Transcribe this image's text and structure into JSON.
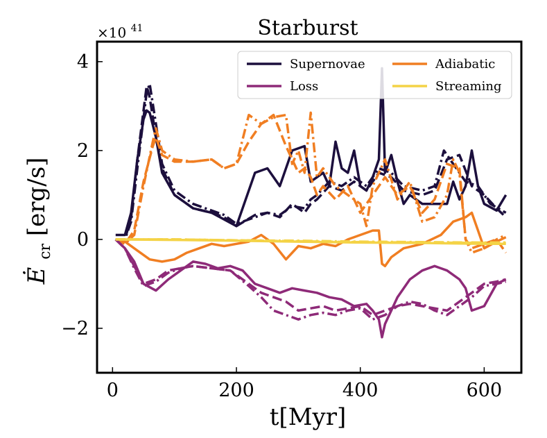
{
  "chart_data": {
    "type": "line",
    "title": "Starburst",
    "xlabel": "t[Myr]",
    "ylabel": "Ė_cr [erg/s]",
    "ylabel_main": "Ė",
    "ylabel_sub": "cr",
    "ylabel_units": "[erg/s]",
    "offset_text": "×10^41",
    "offset_base": "×10",
    "offset_exp": "41",
    "xlim": [
      -25,
      660
    ],
    "ylim": [
      -3.0,
      4.45
    ],
    "xticks": [
      0,
      200,
      400,
      600
    ],
    "xtick_labels": [
      "0",
      "200",
      "400",
      "600"
    ],
    "yticks": [
      -2,
      0,
      2,
      4
    ],
    "ytick_labels": [
      "−2",
      "0",
      "2",
      "4"
    ],
    "legend": {
      "position": "top-right",
      "entries": [
        {
          "label": "Supernovae",
          "color": "#1c0f3d"
        },
        {
          "label": "Adiabatic",
          "color": "#f07e22"
        },
        {
          "label": "Loss",
          "color": "#8e2a78"
        },
        {
          "label": "Streaming",
          "color": "#f4d347"
        }
      ]
    },
    "series": [
      {
        "name": "Supernovae (solid)",
        "color": "#1c0f3d",
        "dash": "solid",
        "x": [
          5,
          20,
          30,
          40,
          50,
          55,
          60,
          70,
          80,
          100,
          130,
          160,
          180,
          200,
          230,
          250,
          270,
          290,
          310,
          320,
          330,
          340,
          350,
          360,
          370,
          380,
          390,
          400,
          410,
          420,
          430,
          435,
          440,
          450,
          460,
          470,
          480,
          500,
          520,
          540,
          550,
          560,
          570,
          580,
          590,
          600,
          620,
          635
        ],
        "y": [
          0.1,
          0.1,
          0.6,
          1.8,
          2.7,
          2.9,
          2.85,
          2.3,
          1.5,
          1.0,
          0.7,
          0.6,
          0.45,
          0.3,
          1.5,
          1.6,
          1.2,
          2.0,
          2.1,
          1.3,
          1.4,
          1.5,
          1.2,
          2.2,
          1.6,
          1.5,
          2.0,
          1.2,
          1.1,
          1.4,
          1.8,
          3.85,
          1.5,
          1.9,
          1.3,
          0.8,
          1.0,
          0.8,
          0.8,
          0.8,
          1.3,
          0.9,
          1.2,
          2.0,
          1.2,
          0.8,
          0.65,
          1.0
        ]
      },
      {
        "name": "Supernovae (dashed)",
        "color": "#1c0f3d",
        "dash": "dashed",
        "x": [
          5,
          20,
          30,
          40,
          55,
          60,
          70,
          80,
          100,
          130,
          160,
          180,
          200,
          230,
          250,
          270,
          290,
          310,
          320,
          330,
          350,
          370,
          390,
          410,
          430,
          450,
          470,
          500,
          520,
          540,
          560,
          580,
          600,
          620,
          635
        ],
        "y": [
          0.0,
          0.0,
          0.5,
          1.8,
          3.45,
          3.2,
          2.3,
          1.6,
          1.0,
          0.7,
          0.6,
          0.5,
          0.3,
          0.55,
          0.6,
          0.5,
          0.8,
          0.6,
          0.8,
          0.9,
          1.2,
          1.1,
          1.3,
          1.1,
          1.5,
          1.4,
          1.1,
          1.0,
          1.1,
          1.8,
          1.9,
          1.2,
          1.0,
          0.7,
          0.5
        ]
      },
      {
        "name": "Supernovae (dash-dot)",
        "color": "#1c0f3d",
        "dash": "dashdot",
        "x": [
          5,
          20,
          30,
          40,
          55,
          60,
          70,
          80,
          100,
          130,
          160,
          180,
          200,
          230,
          250,
          270,
          290,
          310,
          320,
          330,
          350,
          370,
          390,
          410,
          430,
          450,
          470,
          500,
          520,
          535,
          550,
          570,
          590,
          610,
          635
        ],
        "y": [
          0.0,
          0.0,
          0.4,
          1.6,
          3.3,
          3.5,
          2.6,
          1.7,
          1.1,
          0.8,
          0.65,
          0.55,
          0.35,
          0.5,
          0.6,
          0.55,
          0.75,
          0.7,
          0.9,
          1.0,
          1.3,
          1.2,
          1.4,
          1.2,
          1.6,
          1.5,
          1.2,
          1.1,
          1.2,
          2.0,
          1.7,
          1.3,
          1.2,
          0.8,
          0.6
        ]
      },
      {
        "name": "Adiabatic (solid)",
        "color": "#f07e22",
        "dash": "solid",
        "x": [
          5,
          20,
          40,
          60,
          80,
          100,
          120,
          140,
          160,
          180,
          200,
          220,
          240,
          260,
          280,
          300,
          320,
          340,
          360,
          380,
          400,
          420,
          430,
          435,
          440,
          450,
          470,
          500,
          530,
          550,
          570,
          580,
          590,
          600,
          620,
          635
        ],
        "y": [
          0.0,
          -0.05,
          -0.25,
          -0.45,
          -0.5,
          -0.45,
          -0.3,
          -0.2,
          -0.1,
          -0.15,
          -0.1,
          -0.05,
          0.1,
          -0.1,
          -0.45,
          -0.15,
          -0.2,
          -0.1,
          -0.15,
          0.0,
          0.1,
          0.2,
          0.2,
          -0.55,
          -0.6,
          -0.4,
          -0.2,
          -0.1,
          0.1,
          0.4,
          0.5,
          0.6,
          0.2,
          -0.2,
          -0.05,
          0.05
        ]
      },
      {
        "name": "Adiabatic (dashed)",
        "color": "#f07e22",
        "dash": "dashed",
        "x": [
          5,
          20,
          35,
          50,
          65,
          70,
          80,
          100,
          130,
          160,
          180,
          200,
          220,
          240,
          260,
          280,
          300,
          310,
          320,
          330,
          340,
          360,
          380,
          400,
          420,
          440,
          460,
          480,
          500,
          520,
          540,
          560,
          570,
          580,
          600,
          620,
          635
        ],
        "y": [
          0.0,
          -0.1,
          0.2,
          1.3,
          2.1,
          2.3,
          1.9,
          1.75,
          1.75,
          1.8,
          1.6,
          1.7,
          2.2,
          2.6,
          2.8,
          2.1,
          1.5,
          1.6,
          1.4,
          1.0,
          1.2,
          0.9,
          1.2,
          0.6,
          1.0,
          1.4,
          1.0,
          1.2,
          0.6,
          0.9,
          1.7,
          1.6,
          0.0,
          -0.2,
          -0.1,
          0.0,
          -0.3
        ]
      },
      {
        "name": "Adiabatic (dash-dot)",
        "color": "#f07e22",
        "dash": "dashdot",
        "x": [
          5,
          20,
          35,
          50,
          65,
          70,
          80,
          100,
          130,
          160,
          180,
          200,
          220,
          230,
          240,
          260,
          280,
          290,
          300,
          310,
          320,
          330,
          340,
          360,
          380,
          400,
          410,
          420,
          440,
          460,
          480,
          500,
          520,
          540,
          550,
          560,
          570,
          580,
          600,
          620,
          635
        ],
        "y": [
          0.0,
          -0.1,
          0.1,
          1.2,
          2.2,
          2.5,
          2.0,
          1.8,
          1.75,
          1.8,
          1.6,
          1.7,
          2.8,
          2.7,
          2.6,
          2.75,
          2.8,
          1.7,
          2.0,
          1.5,
          2.85,
          1.4,
          1.6,
          1.2,
          1.0,
          0.8,
          0.3,
          1.2,
          1.8,
          0.9,
          1.3,
          0.4,
          0.5,
          1.0,
          1.8,
          1.5,
          0.0,
          -0.3,
          -0.2,
          0.0,
          0.1
        ]
      },
      {
        "name": "Loss (solid)",
        "color": "#8e2a78",
        "dash": "solid",
        "x": [
          5,
          20,
          35,
          50,
          70,
          90,
          110,
          130,
          150,
          170,
          190,
          210,
          230,
          250,
          270,
          290,
          310,
          330,
          350,
          370,
          390,
          410,
          420,
          430,
          435,
          440,
          460,
          480,
          500,
          520,
          540,
          560,
          570,
          580,
          600,
          620,
          635
        ],
        "y": [
          0.0,
          -0.2,
          -0.5,
          -1.0,
          -1.15,
          -0.9,
          -0.7,
          -0.5,
          -0.55,
          -0.65,
          -0.6,
          -0.7,
          -1.0,
          -1.1,
          -1.2,
          -1.1,
          -1.15,
          -1.2,
          -1.3,
          -1.35,
          -1.5,
          -1.45,
          -1.6,
          -1.8,
          -2.2,
          -1.9,
          -1.3,
          -0.9,
          -0.7,
          -0.6,
          -0.7,
          -0.9,
          -1.1,
          -1.6,
          -1.5,
          -1.0,
          -0.9
        ]
      },
      {
        "name": "Loss (dashed)",
        "color": "#8e2a78",
        "dash": "dashed",
        "x": [
          5,
          20,
          35,
          50,
          70,
          90,
          110,
          130,
          160,
          190,
          220,
          240,
          260,
          280,
          300,
          320,
          340,
          360,
          380,
          400,
          420,
          440,
          460,
          480,
          500,
          520,
          540,
          560,
          580,
          600,
          620,
          635
        ],
        "y": [
          0.0,
          -0.2,
          -0.6,
          -1.0,
          -0.9,
          -0.7,
          -0.65,
          -0.6,
          -0.65,
          -0.7,
          -1.0,
          -1.2,
          -1.3,
          -1.4,
          -1.6,
          -1.55,
          -1.5,
          -1.6,
          -1.55,
          -1.5,
          -1.7,
          -1.6,
          -1.5,
          -1.45,
          -1.5,
          -1.55,
          -1.6,
          -1.4,
          -1.2,
          -1.0,
          -0.95,
          -0.9
        ]
      },
      {
        "name": "Loss (dash-dot)",
        "color": "#8e2a78",
        "dash": "dashdot",
        "x": [
          5,
          20,
          35,
          50,
          70,
          90,
          110,
          130,
          160,
          190,
          220,
          240,
          260,
          280,
          300,
          320,
          340,
          360,
          380,
          400,
          420,
          440,
          460,
          480,
          500,
          520,
          540,
          560,
          580,
          600,
          620,
          635
        ],
        "y": [
          0.0,
          -0.2,
          -0.65,
          -1.05,
          -0.95,
          -0.75,
          -0.65,
          -0.6,
          -0.65,
          -0.7,
          -1.05,
          -1.3,
          -1.6,
          -1.7,
          -1.8,
          -1.7,
          -1.65,
          -1.7,
          -1.6,
          -1.55,
          -1.8,
          -1.7,
          -1.5,
          -1.4,
          -1.45,
          -1.6,
          -1.7,
          -1.5,
          -1.3,
          -1.05,
          -1.0,
          -0.95
        ]
      },
      {
        "name": "Streaming (solid)",
        "color": "#f4d347",
        "dash": "solid",
        "x": [
          5,
          100,
          200,
          300,
          400,
          500,
          600,
          635
        ],
        "y": [
          0.0,
          -0.01,
          -0.03,
          -0.05,
          -0.07,
          -0.08,
          -0.1,
          -0.1
        ]
      },
      {
        "name": "Streaming (dashed)",
        "color": "#f4d347",
        "dash": "dashed",
        "x": [
          5,
          100,
          200,
          300,
          400,
          500,
          600,
          635
        ],
        "y": [
          0.0,
          0.0,
          -0.02,
          -0.04,
          -0.06,
          -0.07,
          -0.08,
          -0.08
        ]
      },
      {
        "name": "Streaming (dash-dot)",
        "color": "#f4d347",
        "dash": "dashdot",
        "x": [
          5,
          100,
          200,
          300,
          400,
          500,
          600,
          635
        ],
        "y": [
          0.0,
          0.0,
          -0.02,
          -0.03,
          -0.05,
          -0.06,
          -0.07,
          -0.07
        ]
      }
    ]
  }
}
